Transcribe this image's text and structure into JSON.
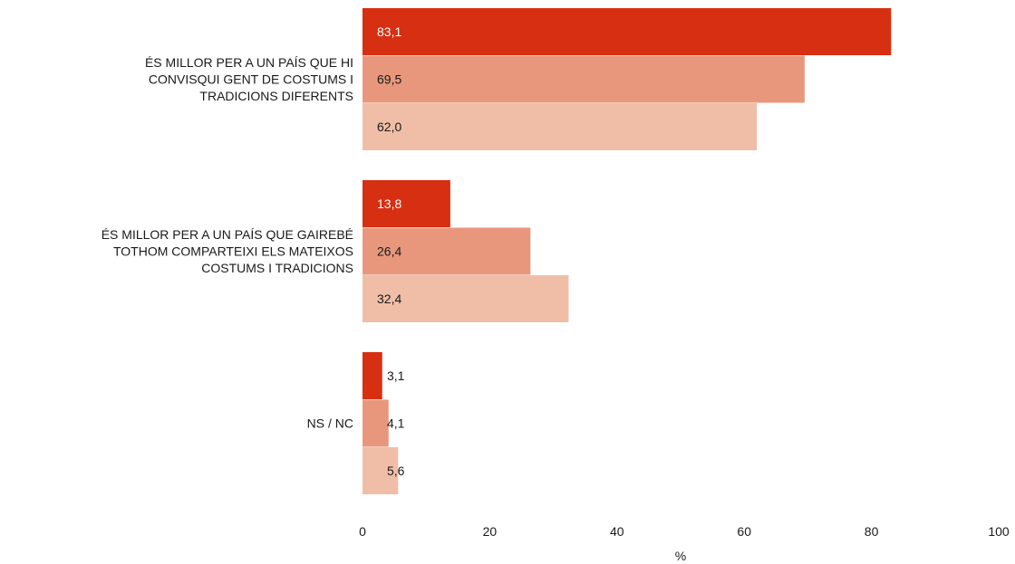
{
  "chart_data": {
    "type": "bar",
    "orientation": "horizontal",
    "categories": [
      [
        "ÉS MILLOR PER A UN PAÍS QUE HI",
        "CONVISQUI GENT DE COSTUMS I",
        "TRADICIONS DIFERENTS"
      ],
      [
        "ÉS MILLOR PER A UN PAÍS QUE GAIREBÉ",
        "TOTHOM COMPARTEIXI ELS MATEIXOS",
        "COSTUMS I TRADICIONS"
      ],
      [
        "NS / NC"
      ]
    ],
    "series": [
      {
        "values": [
          83.1,
          13.8,
          3.1
        ],
        "labels": [
          "83,1",
          "13,8",
          "3,1"
        ],
        "color": "#d62f12"
      },
      {
        "values": [
          69.5,
          26.4,
          4.1
        ],
        "labels": [
          "69,5",
          "26,4",
          "4,1"
        ],
        "color": "#e8977d"
      },
      {
        "values": [
          62.0,
          32.4,
          5.6
        ],
        "labels": [
          "62,0",
          "32,4",
          "5,6"
        ],
        "color": "#f0bea7"
      }
    ],
    "xlim": [
      0,
      100
    ],
    "xticks": [
      "0",
      "20",
      "40",
      "60",
      "80",
      "100"
    ],
    "xlabel": "%",
    "title": "",
    "grid": false,
    "legend": "none"
  }
}
